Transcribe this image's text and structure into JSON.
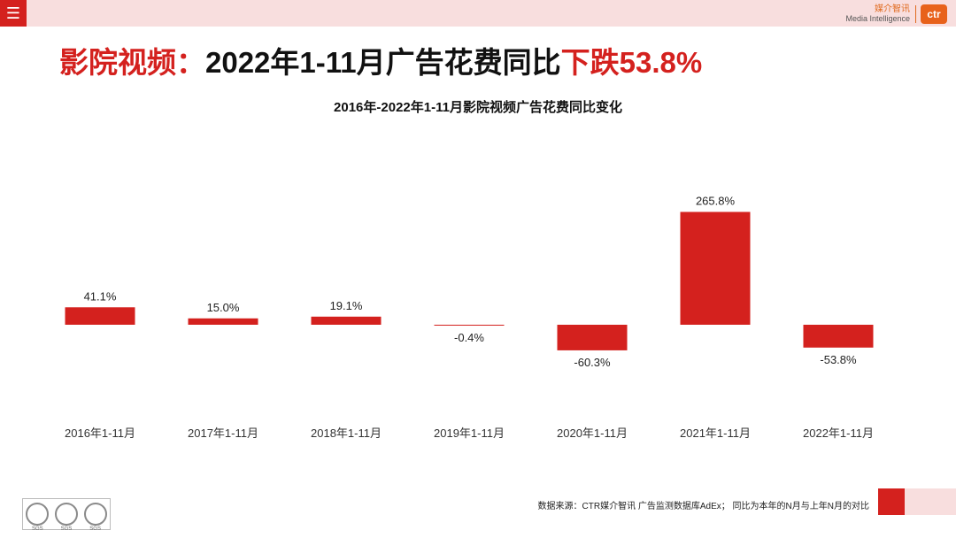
{
  "header": {
    "menu_icon": "hamburger-menu-icon",
    "brand_cn": "媒介智讯",
    "brand_en": "Media Intelligence",
    "brand_logo": "ctr"
  },
  "headline": {
    "part1": "影院视频：",
    "part2": "2022年1-11月广告花费同比",
    "part3": "下跌53.8%"
  },
  "colors": {
    "accent": "#d4211e",
    "band": "#f8dede",
    "brand_orange": "#e8621b"
  },
  "chart_data": {
    "type": "bar",
    "title": "2016年-2022年1-11月影院视频广告花费同比变化",
    "categories": [
      "2016年1-11月",
      "2017年1-11月",
      "2018年1-11月",
      "2019年1-11月",
      "2020年1-11月",
      "2021年1-11月",
      "2022年1-11月"
    ],
    "values": [
      41.1,
      15.0,
      19.1,
      -0.4,
      -60.3,
      265.8,
      -53.8
    ],
    "labels": [
      "41.1%",
      "15.0%",
      "19.1%",
      "-0.4%",
      "-60.3%",
      "265.8%",
      "-53.8%"
    ],
    "unit": "%",
    "xlabel": "",
    "ylabel": "",
    "grid": false,
    "bar_color": "#d4211e"
  },
  "footer": {
    "source": "数据来源：CTR媒介智讯 广告监测数据库AdEx；  同比为本年的N月与上年N月的对比",
    "cert_label": "SGS"
  }
}
